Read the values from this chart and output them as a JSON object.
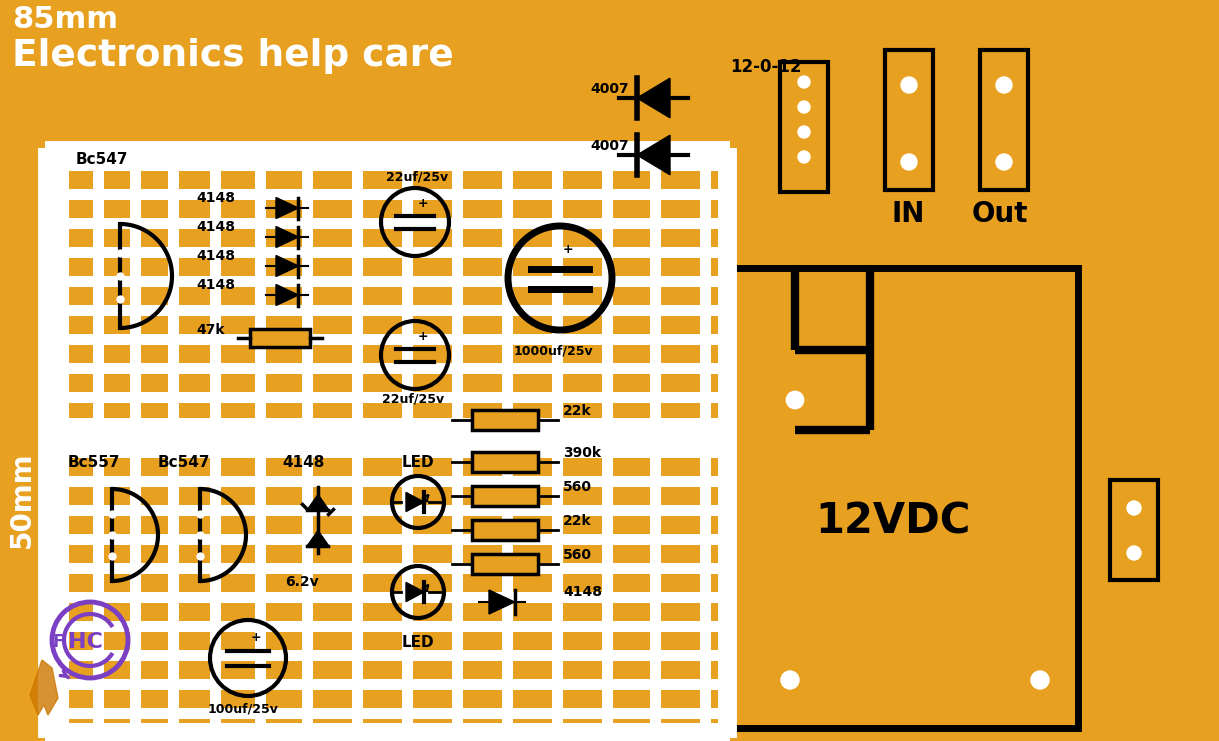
{
  "bg_color": "#E8A020",
  "line_color": "#000000",
  "white_color": "#FFFFFF",
  "title1": "85mm",
  "title2": "Electronics help care",
  "label_50mm": "50mm",
  "label_12vdc": "12VDC",
  "label_in": "IN",
  "label_out": "Out",
  "label_12012": "12-0-12",
  "purple_color": "#7B3FC4"
}
